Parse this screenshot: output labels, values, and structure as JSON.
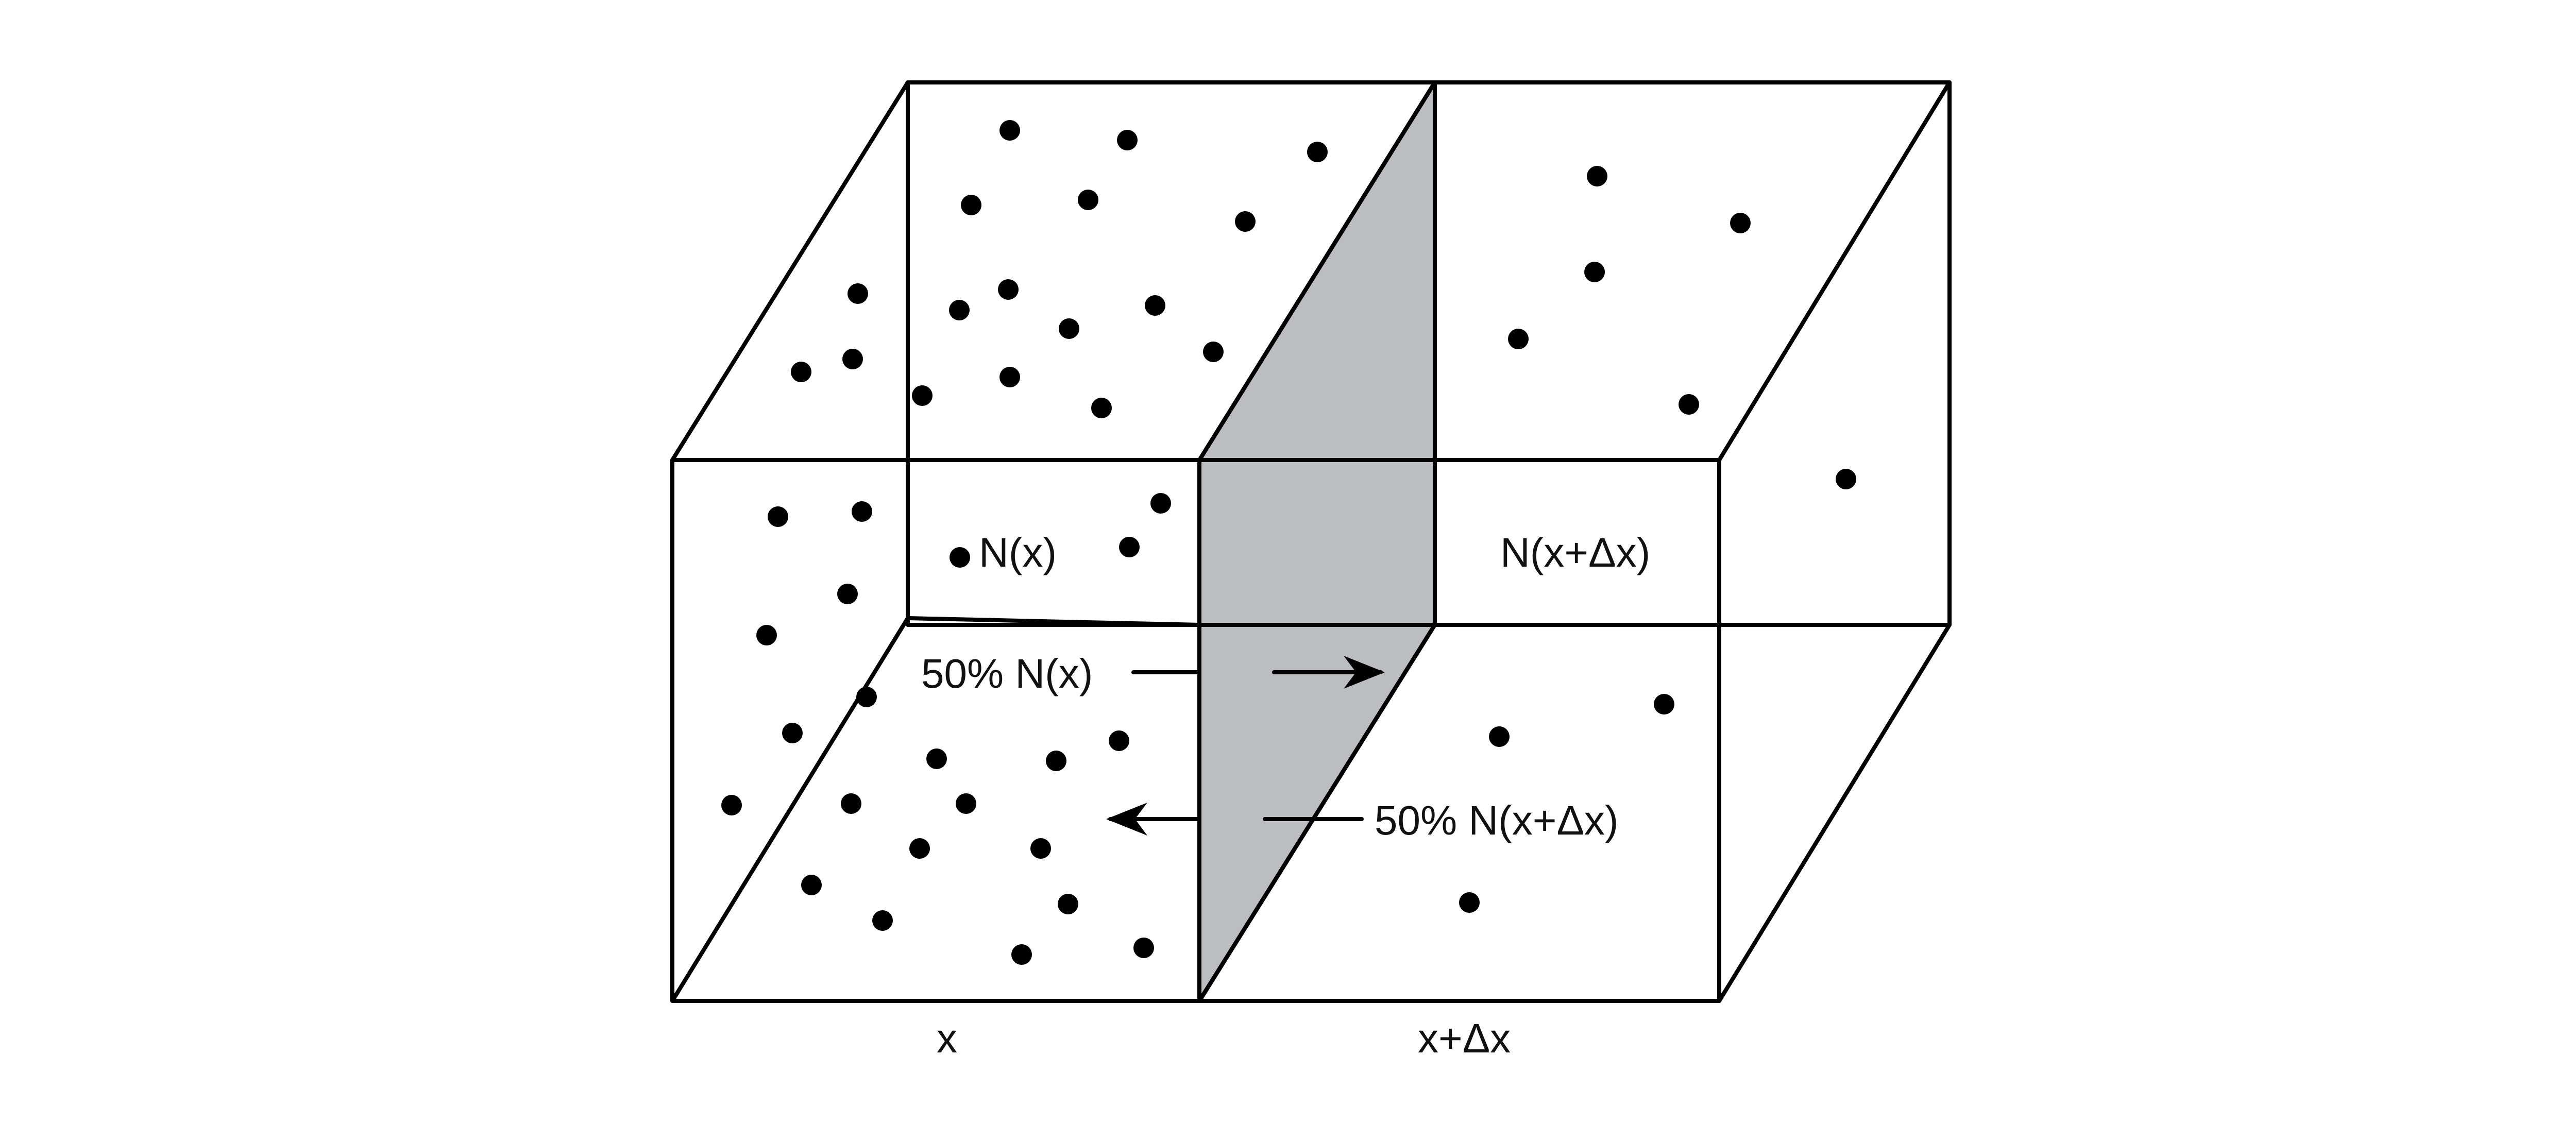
{
  "colors": {
    "background": "#ffffff",
    "line": "#000000",
    "plane_fill": "#bcbdc0",
    "particle": "#000000"
  },
  "labels": {
    "n_x": "N(x)",
    "n_x_dx": "N(x+Δx)",
    "flux_forward": "50% N(x)",
    "flux_backward": "50% N(x+Δx)",
    "axis_x": "x",
    "axis_x_dx": "x+Δx"
  },
  "arrows": [
    {
      "name": "flux-right-arrow",
      "direction": "right"
    },
    {
      "name": "flux-left-arrow",
      "direction": "left"
    }
  ]
}
